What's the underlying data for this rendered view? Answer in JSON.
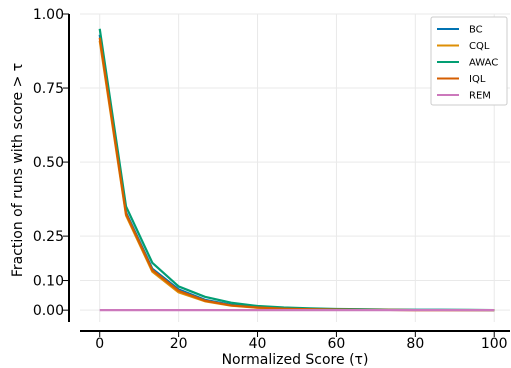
{
  "chart_data": {
    "type": "line",
    "xlabel": "Normalized Score (τ)",
    "ylabel": "Fraction of runs with score > τ",
    "xlim": [
      -5,
      104
    ],
    "ylim": [
      -0.04,
      1.0
    ],
    "x_ticks": [
      0,
      20,
      40,
      60,
      80,
      100
    ],
    "x_tick_labels": [
      "0",
      "20",
      "40",
      "60",
      "80",
      "100"
    ],
    "y_ticks": [
      0.0,
      0.1,
      0.25,
      0.5,
      0.75,
      1.0
    ],
    "y_tick_labels": [
      "0.00",
      "0.10",
      "0.25",
      "0.50",
      "0.75",
      "1.00"
    ],
    "grid": true,
    "legend_position": "top-right",
    "x": [
      0,
      6.67,
      13.33,
      20,
      26.67,
      33.33,
      40,
      46.67,
      53.33,
      60,
      66.67,
      73.33,
      80,
      86.67,
      93.33,
      100
    ],
    "series": [
      {
        "name": "BC",
        "color": "#0173b2",
        "values": [
          0.93,
          0.33,
          0.14,
          0.07,
          0.035,
          0.018,
          0.01,
          0.006,
          0.004,
          0.003,
          0.002,
          0.001,
          0.001,
          0.001,
          0.0,
          0.0
        ]
      },
      {
        "name": "CQL",
        "color": "#de8f05",
        "values": [
          0.91,
          0.32,
          0.13,
          0.06,
          0.03,
          0.015,
          0.008,
          0.005,
          0.003,
          0.002,
          0.001,
          0.001,
          0.0,
          0.0,
          0.0,
          0.0
        ]
      },
      {
        "name": "AWAC",
        "color": "#029e73",
        "values": [
          0.95,
          0.35,
          0.16,
          0.08,
          0.045,
          0.025,
          0.014,
          0.009,
          0.006,
          0.004,
          0.003,
          0.002,
          0.001,
          0.001,
          0.001,
          0.0
        ]
      },
      {
        "name": "IQL",
        "color": "#d55e00",
        "values": [
          0.92,
          0.325,
          0.135,
          0.065,
          0.032,
          0.016,
          0.009,
          0.005,
          0.003,
          0.002,
          0.001,
          0.001,
          0.0,
          0.0,
          0.0,
          0.0
        ]
      },
      {
        "name": "REM",
        "color": "#cc78bc",
        "values": [
          0.0,
          0.0,
          0.0,
          0.0,
          0.0,
          0.0,
          0.0,
          0.0,
          0.0,
          0.0,
          0.0,
          0.0,
          0.0,
          0.0,
          0.0,
          0.0
        ]
      }
    ]
  }
}
